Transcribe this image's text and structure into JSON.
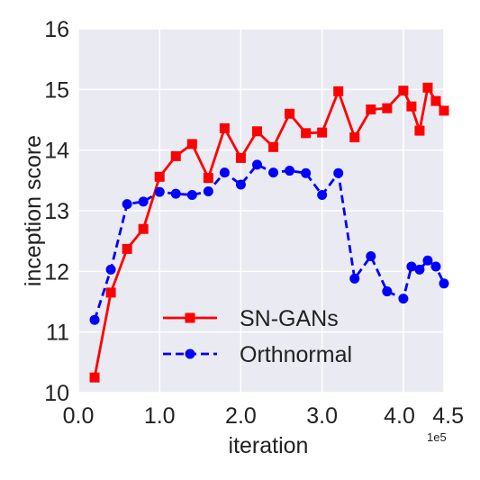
{
  "chart_data": {
    "type": "line",
    "xlabel": "iteration",
    "ylabel": "inception score",
    "x_scale_label": "1e5",
    "xlim": [
      0.0,
      4.5
    ],
    "ylim": [
      10,
      16
    ],
    "grid": true,
    "legend_position": "bottom-center",
    "x_ticks": [
      {
        "value": 0.0,
        "label": "0.0"
      },
      {
        "value": 1.0,
        "label": "1.0"
      },
      {
        "value": 2.0,
        "label": "2.0"
      },
      {
        "value": 3.0,
        "label": "3.0"
      },
      {
        "value": 4.0,
        "label": "4.0"
      },
      {
        "value": 4.5,
        "label": "4.5"
      }
    ],
    "y_ticks": [
      {
        "value": 10,
        "label": "10"
      },
      {
        "value": 11,
        "label": "11"
      },
      {
        "value": 12,
        "label": "12"
      },
      {
        "value": 13,
        "label": "13"
      },
      {
        "value": 14,
        "label": "14"
      },
      {
        "value": 15,
        "label": "15"
      },
      {
        "value": 16,
        "label": "16"
      }
    ],
    "series": [
      {
        "name": "SN-GANs",
        "color": "#ff0000",
        "line_style": "solid",
        "marker": "square",
        "x": [
          0.2,
          0.4,
          0.6,
          0.8,
          1.0,
          1.2,
          1.4,
          1.6,
          1.8,
          2.0,
          2.2,
          2.4,
          2.6,
          2.8,
          3.0,
          3.2,
          3.4,
          3.6,
          3.8,
          4.0,
          4.1,
          4.2,
          4.3,
          4.4,
          4.5
        ],
        "y": [
          10.25,
          11.65,
          12.37,
          12.7,
          13.56,
          13.9,
          14.1,
          13.54,
          14.36,
          13.87,
          14.31,
          14.05,
          14.6,
          14.28,
          14.29,
          14.97,
          14.21,
          14.67,
          14.69,
          14.98,
          14.72,
          14.32,
          15.03,
          14.81,
          14.65
        ]
      },
      {
        "name": "Orthnormal",
        "color": "#0000ff",
        "line_style": "dashed",
        "marker": "circle",
        "x": [
          0.2,
          0.4,
          0.6,
          0.8,
          1.0,
          1.2,
          1.4,
          1.6,
          1.8,
          2.0,
          2.2,
          2.4,
          2.6,
          2.8,
          3.0,
          3.2,
          3.4,
          3.6,
          3.8,
          4.0,
          4.1,
          4.2,
          4.3,
          4.4,
          4.5
        ],
        "y": [
          11.2,
          12.03,
          13.11,
          13.15,
          13.31,
          13.28,
          13.26,
          13.32,
          13.63,
          13.43,
          13.76,
          13.63,
          13.66,
          13.62,
          13.26,
          13.62,
          11.88,
          12.25,
          11.67,
          11.55,
          12.08,
          12.03,
          12.18,
          12.08,
          11.8
        ]
      }
    ]
  }
}
